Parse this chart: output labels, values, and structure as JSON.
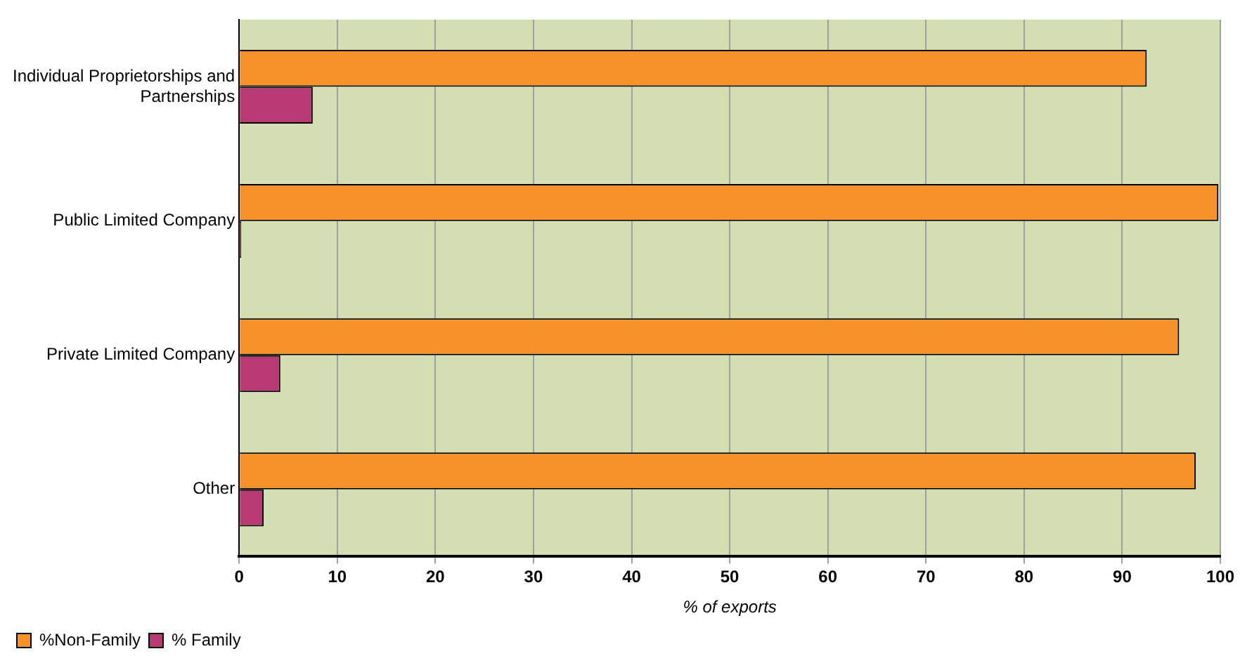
{
  "chart_data": {
    "type": "bar",
    "orientation": "horizontal",
    "xlabel": "% of exports",
    "categories": [
      "Individual Proprietorships and Partnerships",
      "Public Limited Company",
      "Private Limited Company",
      "Other"
    ],
    "series": [
      {
        "name": "%Non-Family",
        "color": "#f7922a",
        "values": [
          92.5,
          99.8,
          95.8,
          97.5
        ]
      },
      {
        "name": "% Family",
        "color": "#b83a74",
        "values": [
          7.5,
          0.2,
          4.2,
          2.5
        ]
      }
    ],
    "xlim": [
      0,
      100
    ],
    "xticks": [
      0,
      10,
      20,
      30,
      40,
      50,
      60,
      70,
      80,
      90,
      100
    ],
    "grid": "x",
    "legend": "bottom left"
  }
}
